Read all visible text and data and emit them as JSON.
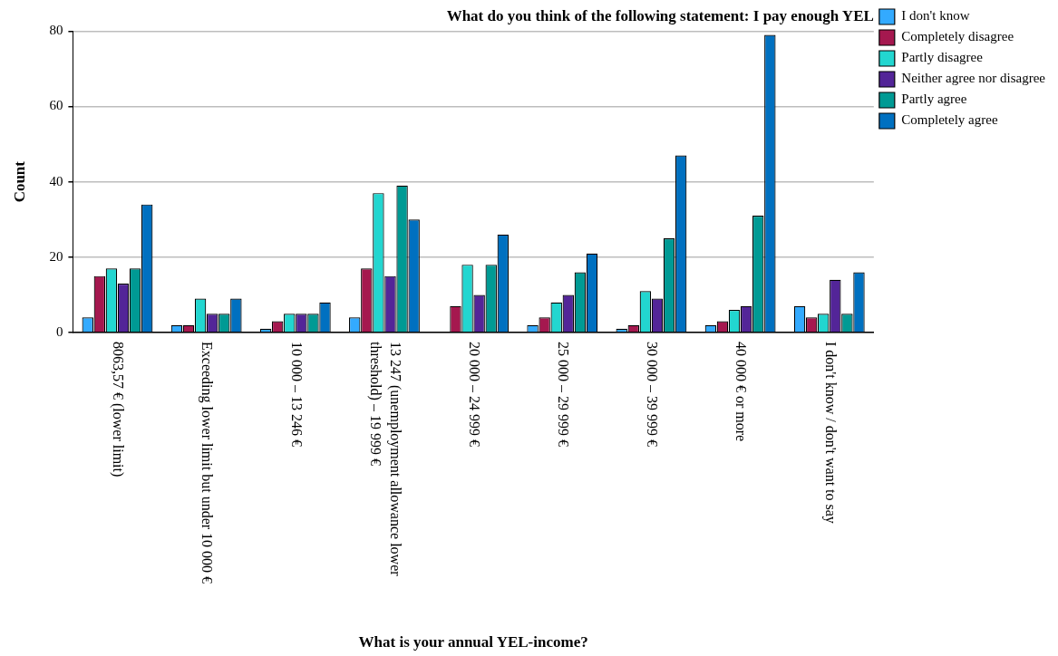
{
  "chart_data": {
    "type": "bar",
    "title": "What do you think of the following statement: I pay enough YEL",
    "xlabel": "What is your annual YEL-income?",
    "ylabel": "Count",
    "categories": [
      "8063,57 € (lower limit)",
      "Exceeding lower limit but under 10 000 €",
      "10 000 – 13 246 €",
      "13 247 (unemployment allowance lower threshold) – 19 999 €",
      "20 000 – 24 999 €",
      "25 000 – 29 999 €",
      "30 000 – 39 999 €",
      "40 000 € or more",
      "I don't know / don't want to say"
    ],
    "series": [
      {
        "name": "I don't know",
        "color": "#33aaff",
        "values": [
          4,
          2,
          1,
          4,
          0,
          2,
          1,
          2,
          7
        ]
      },
      {
        "name": "Completely disagree",
        "color": "#a5184f",
        "values": [
          15,
          2,
          3,
          17,
          7,
          4,
          2,
          3,
          4
        ]
      },
      {
        "name": "Partly disagree",
        "color": "#22d6d0",
        "values": [
          17,
          9,
          5,
          37,
          18,
          8,
          11,
          6,
          5
        ]
      },
      {
        "name": "Neither agree nor disagree",
        "color": "#532598",
        "values": [
          13,
          5,
          5,
          15,
          10,
          10,
          9,
          7,
          14
        ]
      },
      {
        "name": "Partly agree",
        "color": "#009a94",
        "values": [
          17,
          5,
          5,
          39,
          18,
          16,
          25,
          31,
          5
        ]
      },
      {
        "name": "Completely agree",
        "color": "#0070c0",
        "values": [
          34,
          9,
          8,
          30,
          26,
          21,
          47,
          79,
          16
        ]
      }
    ],
    "ylim": [
      0,
      80
    ],
    "yticks": [
      0,
      20,
      40,
      60,
      80
    ],
    "grid": "y",
    "legend": "top right"
  }
}
